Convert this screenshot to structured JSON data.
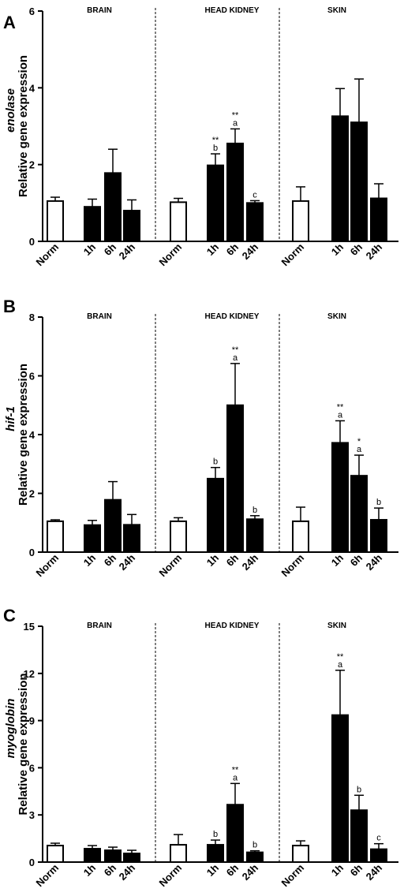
{
  "colors": {
    "filled_bar": "#000000",
    "open_bar": "#ffffff",
    "axis": "#000000"
  },
  "chart_data": [
    {
      "type": "bar",
      "panel": "A",
      "ylabel_gene": "enolase",
      "ylabel": "Relative gene expression",
      "ylim": [
        0,
        6
      ],
      "yticks": [
        0,
        2,
        4,
        6
      ],
      "groups": [
        {
          "label": "BRAIN",
          "bars": [
            {
              "label": "Norm",
              "value": 1.05,
              "error": 0.1,
              "style": "open",
              "annotation": []
            },
            {
              "label": "1h",
              "value": 0.9,
              "error": 0.2,
              "style": "filled",
              "annotation": []
            },
            {
              "label": "6h",
              "value": 1.78,
              "error": 0.62,
              "style": "filled",
              "annotation": []
            },
            {
              "label": "24h",
              "value": 0.8,
              "error": 0.28,
              "style": "filled",
              "annotation": []
            }
          ]
        },
        {
          "label": "HEAD KIDNEY",
          "bars": [
            {
              "label": "Norm",
              "value": 1.02,
              "error": 0.1,
              "style": "open",
              "annotation": []
            },
            {
              "label": "1h",
              "value": 1.98,
              "error": 0.3,
              "style": "filled",
              "annotation": [
                "**",
                "b"
              ]
            },
            {
              "label": "6h",
              "value": 2.55,
              "error": 0.38,
              "style": "filled",
              "annotation": [
                "**",
                "a"
              ]
            },
            {
              "label": "24h",
              "value": 1.0,
              "error": 0.06,
              "style": "filled",
              "annotation": [
                "c"
              ]
            }
          ]
        },
        {
          "label": "SKIN",
          "bars": [
            {
              "label": "Norm",
              "value": 1.05,
              "error": 0.37,
              "style": "open",
              "annotation": []
            },
            {
              "label": "1h",
              "value": 3.26,
              "error": 0.72,
              "style": "filled",
              "annotation": []
            },
            {
              "label": "6h",
              "value": 3.1,
              "error": 1.13,
              "style": "filled",
              "annotation": []
            },
            {
              "label": "24h",
              "value": 1.12,
              "error": 0.38,
              "style": "filled",
              "annotation": []
            }
          ]
        }
      ]
    },
    {
      "type": "bar",
      "panel": "B",
      "ylabel_gene": "hif-1",
      "ylabel": "Relative gene expression",
      "ylim": [
        0,
        8
      ],
      "yticks": [
        0,
        2,
        4,
        6,
        8
      ],
      "groups": [
        {
          "label": "BRAIN",
          "bars": [
            {
              "label": "Norm",
              "value": 1.05,
              "error": 0.05,
              "style": "open",
              "annotation": []
            },
            {
              "label": "1h",
              "value": 0.92,
              "error": 0.16,
              "style": "filled",
              "annotation": []
            },
            {
              "label": "6h",
              "value": 1.78,
              "error": 0.62,
              "style": "filled",
              "annotation": []
            },
            {
              "label": "24h",
              "value": 0.93,
              "error": 0.35,
              "style": "filled",
              "annotation": []
            }
          ]
        },
        {
          "label": "HEAD KIDNEY",
          "bars": [
            {
              "label": "Norm",
              "value": 1.05,
              "error": 0.12,
              "style": "open",
              "annotation": []
            },
            {
              "label": "1h",
              "value": 2.5,
              "error": 0.38,
              "style": "filled",
              "annotation": [
                "b"
              ]
            },
            {
              "label": "6h",
              "value": 5.0,
              "error": 1.42,
              "style": "filled",
              "annotation": [
                "**",
                "a"
              ]
            },
            {
              "label": "24h",
              "value": 1.12,
              "error": 0.12,
              "style": "filled",
              "annotation": [
                "b"
              ]
            }
          ]
        },
        {
          "label": "SKIN",
          "bars": [
            {
              "label": "Norm",
              "value": 1.05,
              "error": 0.48,
              "style": "open",
              "annotation": []
            },
            {
              "label": "1h",
              "value": 3.72,
              "error": 0.75,
              "style": "filled",
              "annotation": [
                "**",
                "a"
              ]
            },
            {
              "label": "6h",
              "value": 2.6,
              "error": 0.7,
              "style": "filled",
              "annotation": [
                "*",
                "a"
              ]
            },
            {
              "label": "24h",
              "value": 1.1,
              "error": 0.4,
              "style": "filled",
              "annotation": [
                "b"
              ]
            }
          ]
        }
      ]
    },
    {
      "type": "bar",
      "panel": "C",
      "ylabel_gene": "myoglobin",
      "ylabel": "Relative gene expression",
      "ylim": [
        0,
        15
      ],
      "yticks": [
        0,
        3,
        6,
        9,
        12,
        15
      ],
      "groups": [
        {
          "label": "BRAIN",
          "bars": [
            {
              "label": "Norm",
              "value": 1.05,
              "error": 0.15,
              "style": "open",
              "annotation": []
            },
            {
              "label": "1h",
              "value": 0.85,
              "error": 0.2,
              "style": "filled",
              "annotation": []
            },
            {
              "label": "6h",
              "value": 0.75,
              "error": 0.2,
              "style": "filled",
              "annotation": []
            },
            {
              "label": "24h",
              "value": 0.55,
              "error": 0.2,
              "style": "filled",
              "annotation": []
            }
          ]
        },
        {
          "label": "HEAD KIDNEY",
          "bars": [
            {
              "label": "Norm",
              "value": 1.1,
              "error": 0.65,
              "style": "open",
              "annotation": []
            },
            {
              "label": "1h",
              "value": 1.1,
              "error": 0.3,
              "style": "filled",
              "annotation": [
                "b"
              ]
            },
            {
              "label": "6h",
              "value": 3.65,
              "error": 1.35,
              "style": "filled",
              "annotation": [
                "**",
                "a"
              ]
            },
            {
              "label": "24h",
              "value": 0.62,
              "error": 0.1,
              "style": "filled",
              "annotation": [
                "b"
              ]
            }
          ]
        },
        {
          "label": "SKIN",
          "bars": [
            {
              "label": "Norm",
              "value": 1.05,
              "error": 0.3,
              "style": "open",
              "annotation": []
            },
            {
              "label": "1h",
              "value": 9.35,
              "error": 2.85,
              "style": "filled",
              "annotation": [
                "**",
                "a"
              ]
            },
            {
              "label": "6h",
              "value": 3.3,
              "error": 0.95,
              "style": "filled",
              "annotation": [
                "b"
              ]
            },
            {
              "label": "24h",
              "value": 0.82,
              "error": 0.35,
              "style": "filled",
              "annotation": [
                "c"
              ]
            }
          ]
        }
      ]
    }
  ]
}
